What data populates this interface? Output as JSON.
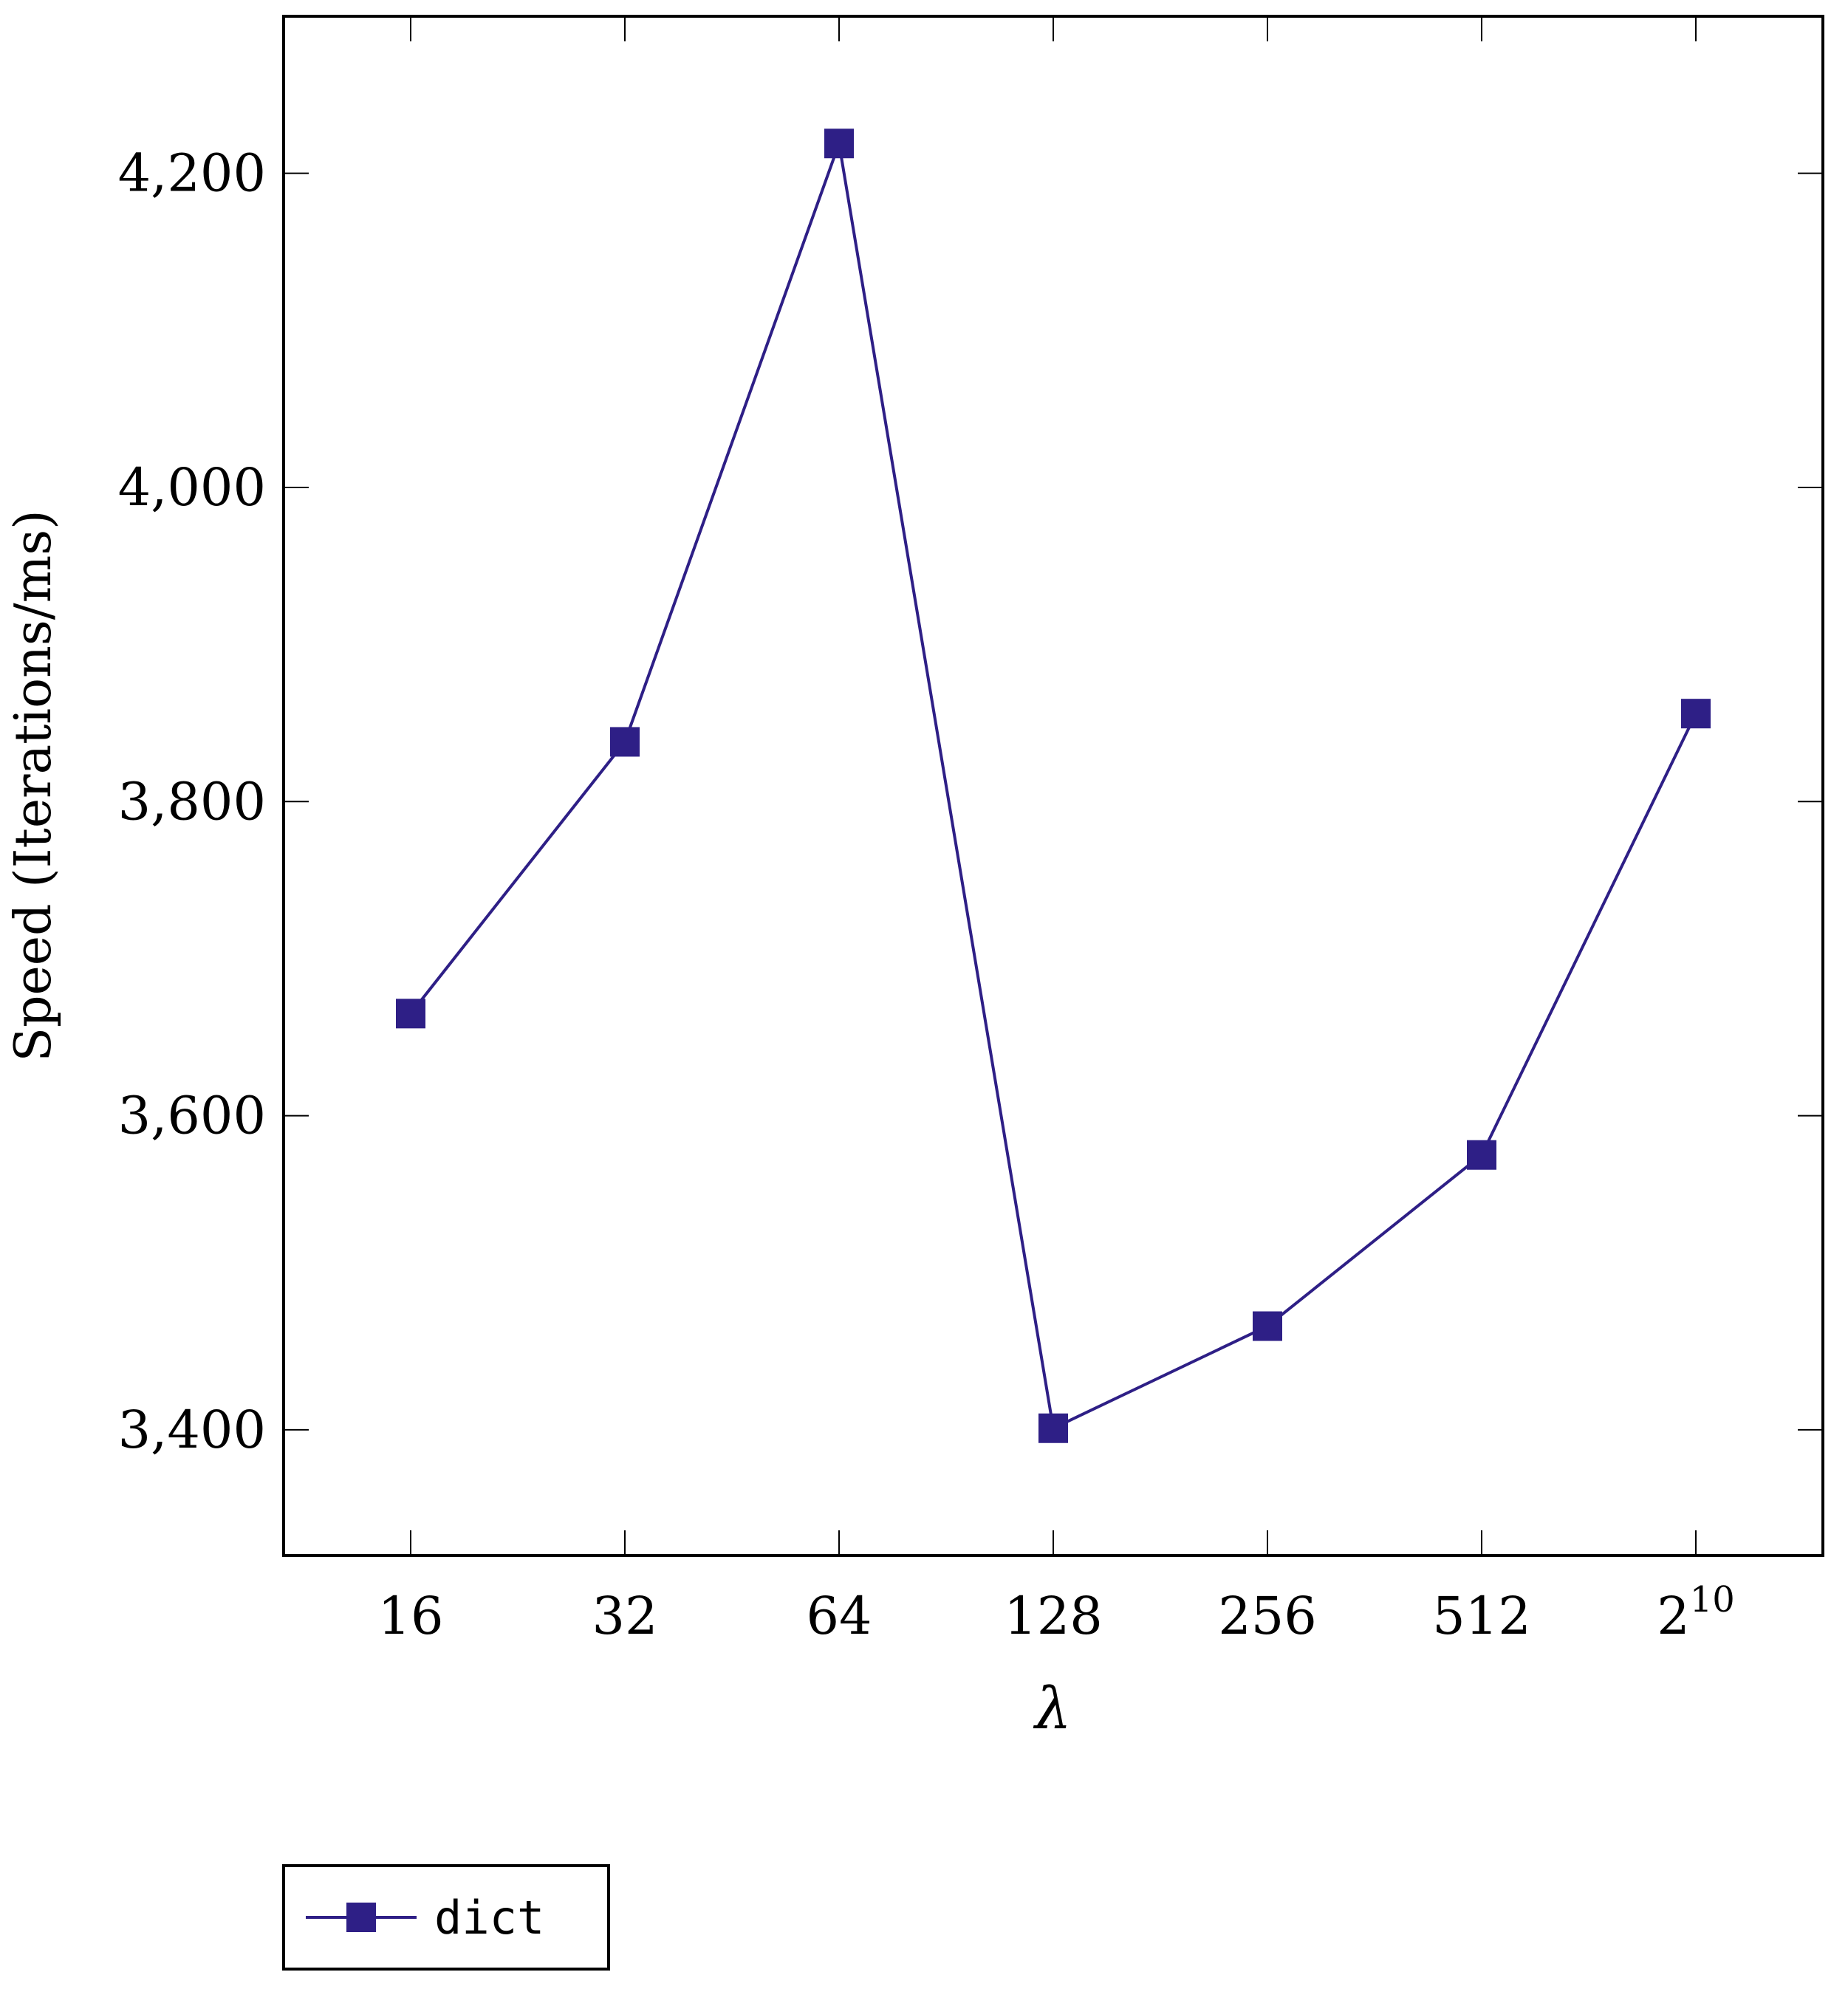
{
  "chart_data": {
    "type": "line",
    "title": "",
    "xlabel": "λ",
    "ylabel": "Speed (Iterations/ms)",
    "categories": [
      "16",
      "32",
      "64",
      "128",
      "256",
      "512",
      "2^10"
    ],
    "x_tick_labels": [
      {
        "base": "16",
        "sup": ""
      },
      {
        "base": "32",
        "sup": ""
      },
      {
        "base": "64",
        "sup": ""
      },
      {
        "base": "128",
        "sup": ""
      },
      {
        "base": "256",
        "sup": ""
      },
      {
        "base": "512",
        "sup": ""
      },
      {
        "base": "2",
        "sup": "10"
      }
    ],
    "series": [
      {
        "name": "dict",
        "color": "#2e1f86",
        "marker": "square",
        "values": [
          3665,
          3838,
          4219,
          3401,
          3466,
          3575,
          3856
        ]
      }
    ],
    "ylim": [
      3320,
      4300
    ],
    "y_ticks": [
      3400,
      3600,
      3800,
      4000,
      4200
    ],
    "y_tick_labels": [
      "3,400",
      "3,600",
      "3,800",
      "4,000",
      "4,200"
    ],
    "grid": false,
    "legend": {
      "position": "bottom-left",
      "entries": [
        "dict"
      ]
    }
  }
}
